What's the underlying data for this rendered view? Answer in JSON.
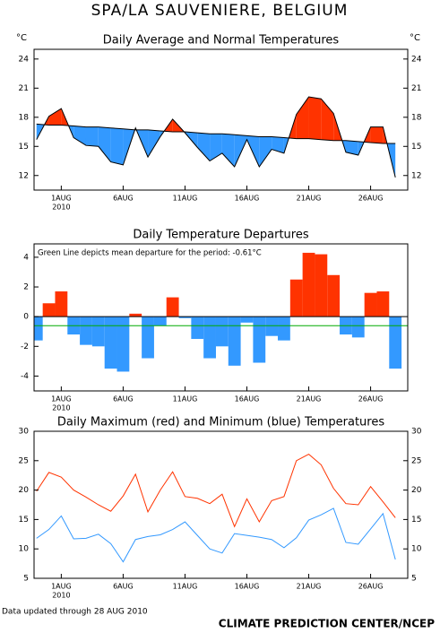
{
  "title": "SPA/LA SAUVENIERE, BELGIUM",
  "footer_note": "Data updated through 28 AUG 2010",
  "credit": "CLIMATE PREDICTION CENTER/NCEP",
  "chart_data": [
    {
      "type": "area",
      "title": "Daily Average and Normal Temperatures",
      "ylabel": "°C",
      "y2label": "°C",
      "x": [
        -1,
        0,
        1,
        2,
        3,
        4,
        5,
        6,
        7,
        8,
        9,
        10,
        11,
        12,
        13,
        14,
        15,
        16,
        17,
        18,
        19,
        20,
        21,
        22,
        23,
        24,
        25,
        26,
        27,
        28
      ],
      "x_year_label": "2010",
      "xlim": [
        -1.2,
        29
      ],
      "xticks": [
        {
          "value": 1,
          "label": "1AUG"
        },
        {
          "value": 6,
          "label": "6AUG"
        },
        {
          "value": 11,
          "label": "11AUG"
        },
        {
          "value": 16,
          "label": "16AUG"
        },
        {
          "value": 21,
          "label": "21AUG"
        },
        {
          "value": 26,
          "label": "26AUG"
        }
      ],
      "ylim": [
        10.5,
        25
      ],
      "yticks": [
        12,
        15,
        18,
        21,
        24
      ],
      "above_color": "#ff3300",
      "below_color": "#3399ff",
      "series": [
        {
          "color": "#000000",
          "values": [
            15.7,
            18.1,
            18.9,
            15.9,
            15.1,
            15.0,
            13.4,
            13.1,
            16.9,
            13.9,
            16.0,
            17.8,
            16.4,
            14.9,
            13.5,
            14.3,
            12.9,
            15.7,
            12.9,
            14.7,
            14.3,
            18.3,
            20.1,
            19.9,
            18.4,
            14.4,
            14.1,
            17.0,
            17.0,
            11.8
          ]
        },
        {
          "color": "#000000",
          "values": [
            17.3,
            17.2,
            17.2,
            17.1,
            17.0,
            17.0,
            16.9,
            16.8,
            16.7,
            16.7,
            16.6,
            16.5,
            16.5,
            16.4,
            16.3,
            16.3,
            16.2,
            16.1,
            16.0,
            16.0,
            15.9,
            15.8,
            15.8,
            15.7,
            15.6,
            15.6,
            15.5,
            15.4,
            15.3,
            15.3
          ]
        }
      ]
    },
    {
      "type": "bar",
      "title": "Daily Temperature Departures",
      "annotation": "Green Line depicts mean departure for the period: -0.61°C",
      "x": [
        -1,
        0,
        1,
        2,
        3,
        4,
        5,
        6,
        7,
        8,
        9,
        10,
        11,
        12,
        13,
        14,
        15,
        16,
        17,
        18,
        19,
        20,
        21,
        22,
        23,
        24,
        25,
        26,
        27,
        28
      ],
      "x_year_label": "2010",
      "xlim": [
        -1.2,
        29
      ],
      "xticks": [
        {
          "value": 1,
          "label": "1AUG"
        },
        {
          "value": 6,
          "label": "6AUG"
        },
        {
          "value": 11,
          "label": "11AUG"
        },
        {
          "value": 16,
          "label": "16AUG"
        },
        {
          "value": 21,
          "label": "21AUG"
        },
        {
          "value": 26,
          "label": "26AUG"
        }
      ],
      "ylim": [
        -5,
        4.9
      ],
      "yticks": [
        -4,
        -2,
        0,
        2,
        4
      ],
      "positive_color": "#ff3300",
      "negative_color": "#3399ff",
      "mean_color": "#00aa00",
      "mean_value": -0.61,
      "values": [
        -1.6,
        0.9,
        1.7,
        -1.2,
        -1.9,
        -2.0,
        -3.5,
        -3.7,
        0.2,
        -2.8,
        -0.6,
        1.3,
        -0.1,
        -1.5,
        -2.8,
        -2.0,
        -3.3,
        -0.4,
        -3.1,
        -1.3,
        -1.6,
        2.5,
        4.3,
        4.2,
        2.8,
        -1.2,
        -1.4,
        1.6,
        1.7,
        -3.5
      ]
    },
    {
      "type": "line",
      "title": "Daily Maximum (red) and Minimum (blue) Temperatures",
      "x": [
        -1,
        0,
        1,
        2,
        3,
        4,
        5,
        6,
        7,
        8,
        9,
        10,
        11,
        12,
        13,
        14,
        15,
        16,
        17,
        18,
        19,
        20,
        21,
        22,
        23,
        24,
        25,
        26,
        27,
        28
      ],
      "x_year_label": "2010",
      "xlim": [
        -1.2,
        29
      ],
      "xticks": [
        {
          "value": 1,
          "label": "1AUG"
        },
        {
          "value": 6,
          "label": "6AUG"
        },
        {
          "value": 11,
          "label": "11AUG"
        },
        {
          "value": 16,
          "label": "16AUG"
        },
        {
          "value": 21,
          "label": "21AUG"
        },
        {
          "value": 26,
          "label": "26AUG"
        }
      ],
      "ylim": [
        5,
        30
      ],
      "yticks": [
        5,
        10,
        15,
        20,
        25,
        30
      ],
      "series": [
        {
          "color": "#ff3300",
          "values": [
            19.8,
            23.0,
            22.2,
            20.0,
            18.8,
            17.5,
            16.4,
            19.0,
            22.7,
            16.3,
            20.0,
            23.1,
            18.9,
            18.6,
            17.7,
            19.3,
            13.8,
            18.5,
            14.6,
            18.2,
            18.9,
            25.0,
            26.1,
            24.3,
            20.3,
            17.7,
            17.5,
            20.6,
            18.0,
            15.3
          ]
        },
        {
          "color": "#3399ff",
          "values": [
            11.8,
            13.3,
            15.6,
            11.7,
            11.8,
            12.5,
            10.9,
            7.8,
            11.6,
            12.1,
            12.4,
            13.3,
            14.6,
            12.3,
            10.0,
            9.3,
            12.6,
            12.3,
            12.0,
            11.6,
            10.2,
            11.9,
            14.9,
            15.8,
            16.9,
            11.1,
            10.8,
            13.4,
            16.0,
            8.2
          ]
        }
      ]
    }
  ]
}
